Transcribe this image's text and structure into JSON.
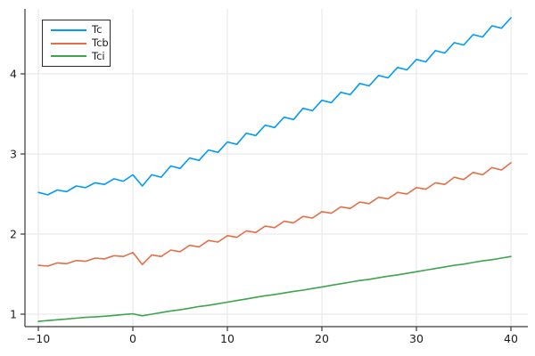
{
  "figure": {
    "background": "#ffffff"
  },
  "axes": {
    "grid_color": "#e4e4e4",
    "spine_color": "#3a3a3a",
    "tick_color": "#3a3a3a",
    "tick_label_color": "#1c1c1c"
  },
  "legend": {
    "position": "top-left",
    "background": "#ffffff",
    "border_color": "#2b2b2b"
  },
  "chart_data": {
    "type": "line",
    "title": "",
    "xlabel": "",
    "ylabel": "",
    "grid": true,
    "legend_position": "top-left",
    "xlim": [
      -11.4,
      41.8
    ],
    "ylim": [
      0.84,
      4.81
    ],
    "x_ticks": [
      -10,
      0,
      10,
      20,
      30,
      40
    ],
    "x_tick_labels": [
      "−10",
      "0",
      "10",
      "20",
      "30",
      "40"
    ],
    "y_ticks": [
      1,
      2,
      3,
      4
    ],
    "y_tick_labels": [
      "1",
      "2",
      "3",
      "4"
    ],
    "x": [
      -10,
      -9,
      -8,
      -7,
      -6,
      -5,
      -4,
      -3,
      -2,
      -1,
      0,
      1,
      2,
      3,
      4,
      5,
      6,
      7,
      8,
      9,
      10,
      11,
      12,
      13,
      14,
      15,
      16,
      17,
      18,
      19,
      20,
      21,
      22,
      23,
      24,
      25,
      26,
      27,
      28,
      29,
      30,
      31,
      32,
      33,
      34,
      35,
      36,
      37,
      38,
      39,
      40
    ],
    "series": [
      {
        "name": "Tc",
        "color": "#009af9",
        "values": [
          2.52,
          2.49,
          2.55,
          2.53,
          2.6,
          2.58,
          2.64,
          2.62,
          2.69,
          2.66,
          2.74,
          2.6,
          2.74,
          2.71,
          2.85,
          2.82,
          2.95,
          2.92,
          3.05,
          3.02,
          3.15,
          3.12,
          3.26,
          3.23,
          3.36,
          3.33,
          3.46,
          3.43,
          3.57,
          3.54,
          3.67,
          3.64,
          3.77,
          3.74,
          3.88,
          3.85,
          3.98,
          3.95,
          4.08,
          4.05,
          4.18,
          4.15,
          4.29,
          4.26,
          4.39,
          4.36,
          4.49,
          4.46,
          4.6,
          4.57,
          4.7
        ]
      },
      {
        "name": "Tcb",
        "color": "#e36f47",
        "values": [
          1.61,
          1.6,
          1.64,
          1.63,
          1.67,
          1.66,
          1.7,
          1.69,
          1.73,
          1.72,
          1.77,
          1.62,
          1.74,
          1.72,
          1.8,
          1.78,
          1.86,
          1.84,
          1.92,
          1.9,
          1.98,
          1.96,
          2.04,
          2.02,
          2.1,
          2.08,
          2.16,
          2.14,
          2.22,
          2.2,
          2.28,
          2.26,
          2.34,
          2.32,
          2.4,
          2.38,
          2.46,
          2.44,
          2.52,
          2.5,
          2.58,
          2.56,
          2.64,
          2.62,
          2.71,
          2.68,
          2.77,
          2.74,
          2.83,
          2.8,
          2.89
        ]
      },
      {
        "name": "Tci",
        "color": "#3ea44d",
        "values": [
          0.91,
          0.92,
          0.93,
          0.94,
          0.95,
          0.96,
          0.965,
          0.975,
          0.985,
          0.995,
          1.005,
          0.98,
          1.0,
          1.02,
          1.04,
          1.055,
          1.075,
          1.095,
          1.11,
          1.13,
          1.15,
          1.17,
          1.19,
          1.21,
          1.23,
          1.245,
          1.265,
          1.285,
          1.3,
          1.32,
          1.34,
          1.36,
          1.38,
          1.4,
          1.42,
          1.435,
          1.455,
          1.475,
          1.49,
          1.51,
          1.53,
          1.55,
          1.57,
          1.59,
          1.61,
          1.625,
          1.645,
          1.665,
          1.68,
          1.7,
          1.72
        ]
      }
    ]
  }
}
